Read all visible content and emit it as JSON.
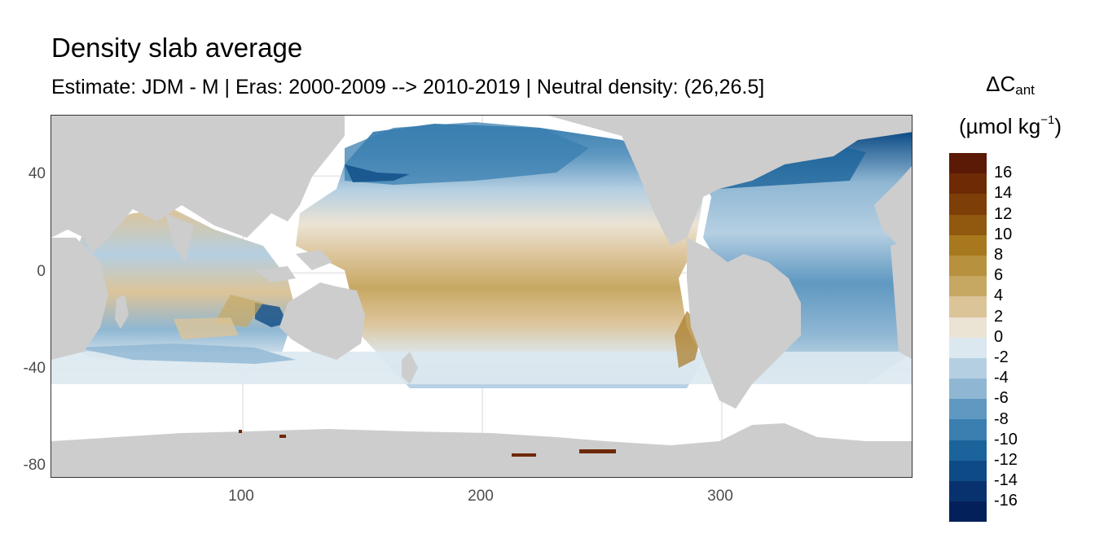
{
  "title": "Density slab average",
  "subtitle": "Estimate: JDM - M | Eras: 2000-2009 --> 2010-2019 | Neutral density: (26,26.5]",
  "legend": {
    "title_main": "ΔC",
    "title_sub": "ant",
    "unit_open": "(µmol kg",
    "unit_sup": "−1",
    "unit_close": ")",
    "labels": [
      "16",
      "14",
      "12",
      "10",
      "8",
      "6",
      "4",
      "2",
      "0",
      "-2",
      "-4",
      "-6",
      "-8",
      "-10",
      "-12",
      "-14",
      "-16"
    ],
    "colors": [
      "#5a1a05",
      "#6e2a05",
      "#7e3e07",
      "#90590f",
      "#a8781f",
      "#b8913f",
      "#c7a863",
      "#dcc499",
      "#ebe3d4",
      "#dce8f0",
      "#b5cfe2",
      "#8fb7d3",
      "#5f98c1",
      "#3a7fb0",
      "#1b649b",
      "#0e4b86",
      "#08326e",
      "#04205a"
    ]
  },
  "axes": {
    "x_ticks": [
      "100",
      "200",
      "300"
    ],
    "y_ticks": [
      "40",
      "0",
      "-40",
      "-80"
    ]
  },
  "map": {
    "lon_range": [
      20,
      380
    ],
    "lat_range": [
      -85,
      65
    ],
    "land_color": "#cdcdcd",
    "no_data_color": "#ffffff",
    "grid_color": "#ebebeb"
  }
}
